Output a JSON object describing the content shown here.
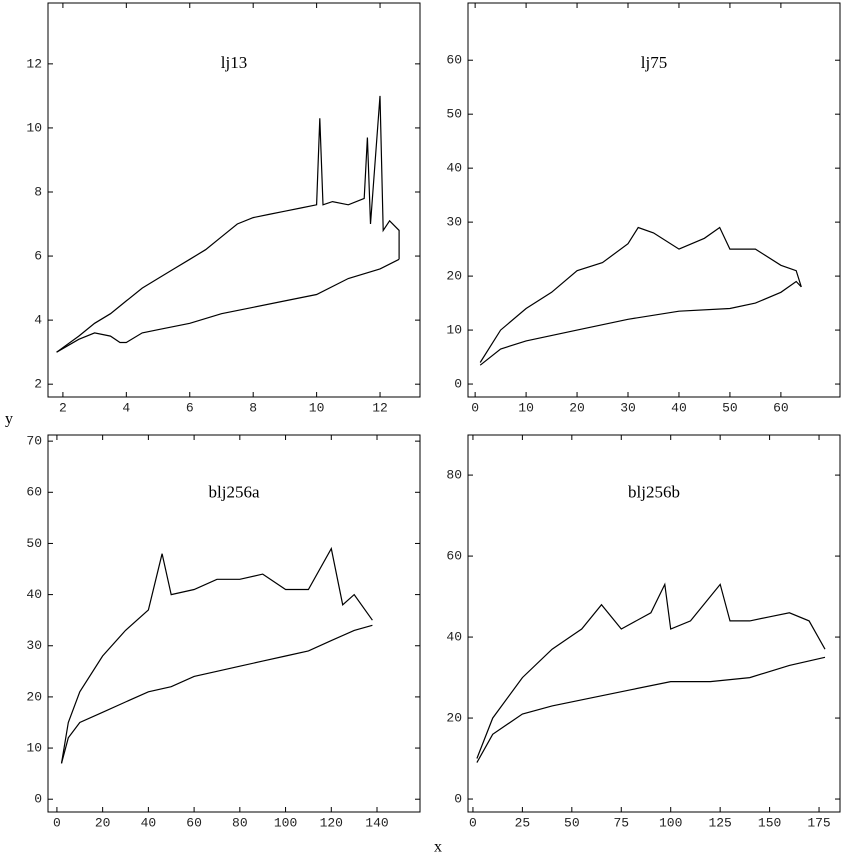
{
  "x_label": "x",
  "y_label": "y",
  "chart_data": [
    {
      "type": "line",
      "title": "lj13",
      "color": "#000000",
      "xlim": [
        1.53,
        13.26
      ],
      "ylim": [
        1.6,
        13.9
      ],
      "xticks": [
        2,
        4,
        6,
        8,
        10,
        12
      ],
      "yticks": [
        2,
        4,
        6,
        8,
        10,
        12
      ],
      "upper": {
        "x": [
          1.8,
          2.5,
          3,
          3.5,
          4,
          4.5,
          5,
          5.5,
          6,
          6.5,
          7,
          7.5,
          8,
          8.5,
          9,
          9.5,
          10,
          10.1,
          10.2,
          10.5,
          11,
          11.5,
          11.6,
          11.7,
          12,
          12.1,
          12.3,
          12.6,
          12.6
        ],
        "values": [
          3.0,
          3.5,
          3.9,
          4.2,
          4.6,
          5.0,
          5.3,
          5.6,
          5.9,
          6.2,
          6.6,
          7.0,
          7.2,
          7.3,
          7.4,
          7.5,
          7.6,
          10.3,
          7.6,
          7.7,
          7.6,
          7.8,
          9.7,
          7.0,
          11.0,
          6.8,
          7.1,
          6.8,
          5.9
        ]
      },
      "lower": {
        "x": [
          1.8,
          2.5,
          3,
          3.5,
          3.8,
          4,
          4.5,
          5,
          6,
          7,
          8,
          9,
          10,
          11,
          12,
          12.6
        ],
        "values": [
          3.0,
          3.4,
          3.6,
          3.5,
          3.3,
          3.3,
          3.6,
          3.7,
          3.9,
          4.2,
          4.4,
          4.6,
          4.8,
          5.3,
          5.6,
          5.9
        ]
      }
    },
    {
      "type": "line",
      "title": "lj75",
      "color": "#000000",
      "xlim": [
        -1.4,
        71.6
      ],
      "ylim": [
        -2.4,
        70.6
      ],
      "xticks": [
        0,
        10,
        20,
        30,
        40,
        50,
        60
      ],
      "yticks": [
        0,
        10,
        20,
        30,
        40,
        50,
        60
      ],
      "upper": {
        "x": [
          1,
          5,
          10,
          15,
          20,
          25,
          30,
          32,
          35,
          40,
          45,
          48,
          50,
          55,
          60,
          63,
          64
        ],
        "values": [
          4,
          10,
          14,
          17,
          21,
          22.5,
          26,
          29,
          28,
          25,
          27,
          29,
          25,
          25,
          22,
          21,
          18
        ]
      },
      "lower": {
        "x": [
          1,
          5,
          10,
          20,
          30,
          40,
          50,
          55,
          60,
          63,
          64
        ],
        "values": [
          3.5,
          6.5,
          8,
          10,
          12,
          13.5,
          14,
          15,
          17,
          19,
          18
        ]
      }
    },
    {
      "type": "line",
      "title": "blj256a",
      "color": "#000000",
      "xlim": [
        -3.9,
        158.8
      ],
      "ylim": [
        -2.5,
        71.2
      ],
      "xticks": [
        0,
        20,
        40,
        60,
        80,
        100,
        120,
        140
      ],
      "yticks": [
        0,
        10,
        20,
        30,
        40,
        50,
        60,
        70
      ],
      "upper": {
        "x": [
          2,
          5,
          10,
          20,
          30,
          40,
          46,
          50,
          60,
          70,
          80,
          90,
          100,
          110,
          120,
          125,
          130,
          138
        ],
        "values": [
          7,
          15,
          21,
          28,
          33,
          37,
          48,
          40,
          41,
          43,
          43,
          44,
          41,
          41,
          49,
          38,
          40,
          35
        ]
      },
      "lower": {
        "x": [
          2,
          5,
          10,
          20,
          30,
          40,
          50,
          60,
          70,
          80,
          90,
          100,
          110,
          120,
          130,
          138
        ],
        "values": [
          7,
          12,
          15,
          17,
          19,
          21,
          22,
          24,
          25,
          26,
          27,
          28,
          29,
          31,
          33,
          34
        ]
      }
    },
    {
      "type": "line",
      "title": "blj256b",
      "color": "#000000",
      "xlim": [
        -2.5,
        185.6
      ],
      "ylim": [
        -3.2,
        89.9
      ],
      "xticks": [
        0,
        25,
        50,
        75,
        100,
        125,
        150,
        175
      ],
      "yticks": [
        0,
        20,
        40,
        60,
        80
      ],
      "upper": {
        "x": [
          2,
          10,
          25,
          40,
          55,
          65,
          75,
          90,
          97,
          100,
          110,
          125,
          130,
          140,
          150,
          160,
          170,
          178
        ],
        "values": [
          10,
          20,
          30,
          37,
          42,
          48,
          42,
          46,
          53,
          42,
          44,
          53,
          44,
          44,
          45,
          46,
          44,
          37
        ]
      },
      "lower": {
        "x": [
          2,
          10,
          25,
          40,
          60,
          80,
          100,
          120,
          140,
          160,
          178
        ],
        "values": [
          9,
          16,
          21,
          23,
          25,
          27,
          29,
          29,
          30,
          33,
          35
        ]
      }
    }
  ]
}
